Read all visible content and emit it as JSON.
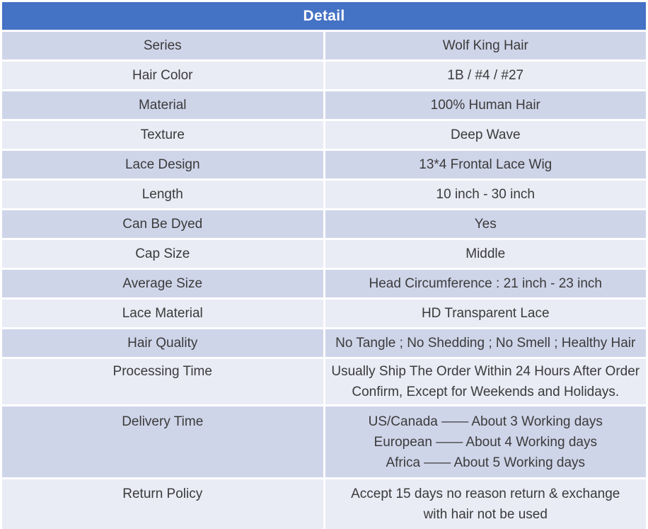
{
  "table": {
    "title": "Detail",
    "rows": [
      {
        "label": "Series",
        "lines": [
          "Wolf King Hair"
        ]
      },
      {
        "label": "Hair Color",
        "lines": [
          "1B / #4 / #27"
        ]
      },
      {
        "label": "Material",
        "lines": [
          "100% Human Hair"
        ]
      },
      {
        "label": "Texture",
        "lines": [
          "Deep Wave"
        ]
      },
      {
        "label": "Lace Design",
        "lines": [
          "13*4 Frontal Lace Wig"
        ]
      },
      {
        "label": "Length",
        "lines": [
          "10 inch - 30 inch"
        ]
      },
      {
        "label": "Can Be Dyed",
        "lines": [
          "Yes"
        ]
      },
      {
        "label": "Cap Size",
        "lines": [
          "Middle"
        ]
      },
      {
        "label": "Average Size",
        "lines": [
          "Head Circumference : 21 inch - 23 inch"
        ]
      },
      {
        "label": "Lace Material",
        "lines": [
          "HD Transparent Lace"
        ]
      },
      {
        "label": "Hair Quality",
        "lines": [
          "No Tangle ; No Shedding ; No Smell ; Healthy Hair"
        ]
      },
      {
        "label": "Processing Time",
        "lines": [
          "Usually Ship The Order Within 24 Hours After Order",
          "Confirm, Except for Weekends and Holidays."
        ]
      },
      {
        "label": "Delivery Time",
        "lines": [
          "US/Canada —— About 3 Working days",
          "European —— About 4 Working days",
          "Africa —— About 5 Working days"
        ]
      },
      {
        "label": "Return Policy",
        "lines": [
          "Accept 15 days no reason return & exchange",
          "with hair not be used"
        ]
      }
    ]
  },
  "colors": {
    "header_bg": "#4472C4",
    "header_text": "#FFFFFF",
    "row_dark": "#CFD5E9",
    "row_light": "#E9EBF5",
    "text": "#3B3B3B",
    "gutter": "#FFFFFF"
  }
}
